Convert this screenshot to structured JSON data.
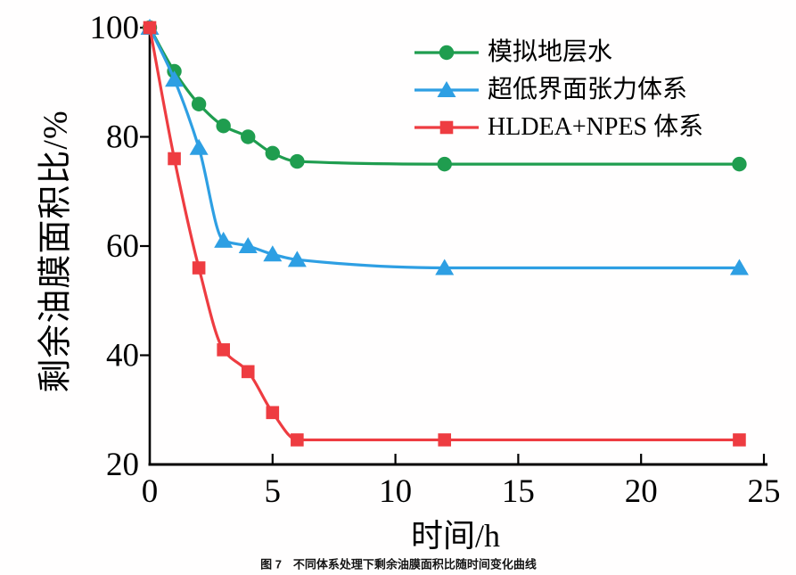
{
  "figure": {
    "caption": "图 7　不同体系处理下剩余油膜面积比随时间变化曲线"
  },
  "chart_data": {
    "type": "line",
    "title": "",
    "xlabel": "时间/h",
    "ylabel": "剩余油膜面积比/%",
    "xlim": [
      0,
      25
    ],
    "ylim": [
      20,
      100
    ],
    "x_ticks": [
      0,
      5,
      10,
      15,
      20,
      25
    ],
    "y_ticks": [
      20,
      40,
      60,
      80,
      100
    ],
    "grid": false,
    "legend_position": "inside-upper-right",
    "axis_color": "#000000",
    "x": [
      0,
      1,
      2,
      3,
      4,
      5,
      6,
      12,
      24
    ],
    "series": [
      {
        "name": "模拟地层水",
        "marker": "circle",
        "color": "#1F9D4F",
        "values": [
          100,
          92,
          86,
          82,
          80,
          77,
          75.5,
          75,
          75
        ]
      },
      {
        "name": "超低界面张力体系",
        "marker": "triangle",
        "color": "#2E9FE3",
        "values": [
          100,
          90.5,
          78,
          61,
          60,
          58.5,
          57.5,
          56,
          56
        ]
      },
      {
        "name": "HLDEA+NPES 体系",
        "marker": "square",
        "color": "#EE3C41",
        "values": [
          100,
          76,
          56,
          41,
          37,
          29.5,
          24.5,
          24.5,
          24.5
        ]
      }
    ]
  }
}
